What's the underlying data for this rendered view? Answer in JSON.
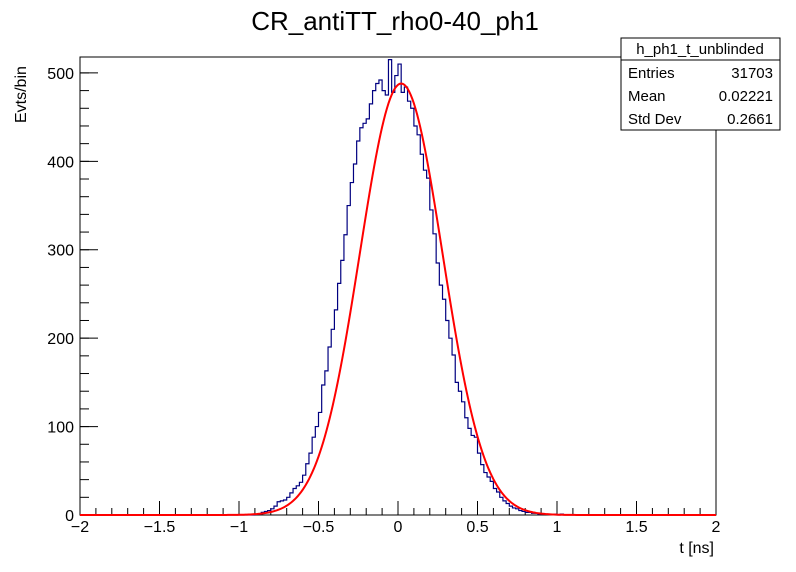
{
  "chart_data": {
    "type": "histogram",
    "title": "CR_antiTT_rho0-40_ph1",
    "xlabel": "t [ns]",
    "ylabel": "Evts/bin",
    "xlim": [
      -2,
      2
    ],
    "ylim": [
      0,
      518
    ],
    "x_ticks": [
      -2,
      -1.5,
      -1,
      -0.5,
      0,
      0.5,
      1,
      1.5,
      2
    ],
    "x_tick_labels": [
      "−2",
      "−1.5",
      "−1",
      "−0.5",
      "0",
      "0.5",
      "1",
      "1.5",
      "2"
    ],
    "y_ticks": [
      0,
      100,
      200,
      300,
      400,
      500
    ],
    "y_tick_labels": [
      "0",
      "100",
      "200",
      "300",
      "400",
      "500"
    ],
    "grid": false,
    "series": [
      {
        "kind": "histogram",
        "color": "#000080",
        "bin_width": 0.02,
        "bin_centers": [
          -0.89,
          -0.87,
          -0.85,
          -0.83,
          -0.81,
          -0.79,
          -0.77,
          -0.75,
          -0.73,
          -0.71,
          -0.69,
          -0.67,
          -0.65,
          -0.63,
          -0.61,
          -0.59,
          -0.57,
          -0.55,
          -0.53,
          -0.51,
          -0.49,
          -0.47,
          -0.45,
          -0.43,
          -0.41,
          -0.39,
          -0.37,
          -0.35,
          -0.33,
          -0.31,
          -0.29,
          -0.27,
          -0.25,
          -0.23,
          -0.21,
          -0.19,
          -0.17,
          -0.15,
          -0.13,
          -0.11,
          -0.09,
          -0.07,
          -0.05,
          -0.03,
          -0.01,
          0.01,
          0.03,
          0.05,
          0.07,
          0.09,
          0.11,
          0.13,
          0.15,
          0.17,
          0.19,
          0.21,
          0.23,
          0.25,
          0.27,
          0.29,
          0.31,
          0.33,
          0.35,
          0.37,
          0.39,
          0.41,
          0.43,
          0.45,
          0.47,
          0.49,
          0.51,
          0.53,
          0.55,
          0.57,
          0.59,
          0.61,
          0.63,
          0.65,
          0.67,
          0.69,
          0.71,
          0.73,
          0.75,
          0.77,
          0.79,
          0.81,
          0.83,
          0.85,
          0.87,
          0.89,
          0.91,
          0.93,
          0.95,
          0.97,
          0.99,
          1.01,
          1.03,
          1.05,
          1.07
        ],
        "counts": [
          1,
          1,
          3,
          4,
          5,
          7,
          10,
          15,
          16,
          17,
          20,
          25,
          30,
          33,
          37,
          45,
          58,
          70,
          88,
          100,
          116,
          147,
          163,
          190,
          210,
          232,
          262,
          288,
          317,
          350,
          376,
          397,
          423,
          438,
          443,
          448,
          465,
          480,
          488,
          492,
          480,
          475,
          515,
          478,
          497,
          510,
          478,
          484,
          468,
          460,
          440,
          430,
          408,
          390,
          381,
          345,
          318,
          285,
          260,
          244,
          220,
          200,
          181,
          150,
          140,
          128,
          110,
          98,
          90,
          88,
          70,
          57,
          48,
          43,
          38,
          30,
          26,
          20,
          16,
          13,
          10,
          8,
          7,
          5,
          4,
          3,
          3,
          2,
          2,
          1,
          1,
          1,
          1,
          1,
          1,
          0,
          1,
          0,
          0
        ]
      },
      {
        "kind": "fit",
        "function": "gaus",
        "color": "#ff0000",
        "constant": 488,
        "mean": 0.02,
        "sigma": 0.26
      }
    ],
    "stats_box": {
      "name": "h_ph1_t_unblinded",
      "rows": [
        {
          "label": "Entries",
          "value": "31703"
        },
        {
          "label": "Mean",
          "value": "0.02221"
        },
        {
          "label": "Std Dev",
          "value": "0.2661"
        }
      ]
    }
  }
}
